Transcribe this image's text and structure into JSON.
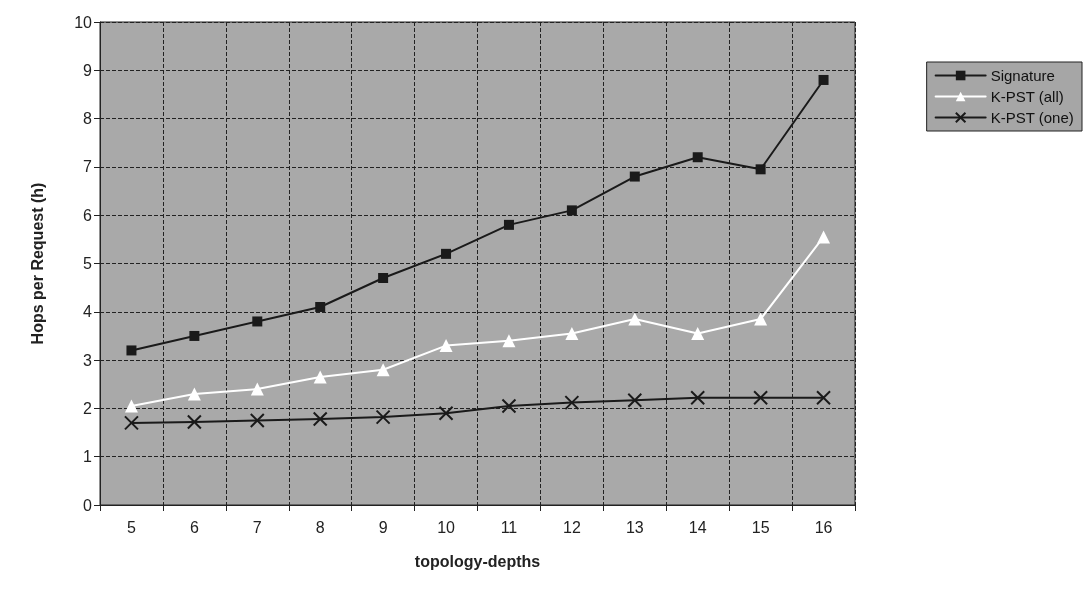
{
  "chart_data": {
    "type": "line",
    "xlabel": "topology-depths",
    "ylabel": "Hops per Request (h)",
    "categories": [
      "5",
      "6",
      "7",
      "8",
      "9",
      "10",
      "11",
      "12",
      "13",
      "14",
      "15",
      "16"
    ],
    "series": [
      {
        "name": "Signature",
        "color": "#1a1a1a",
        "marker": "square",
        "values": [
          3.2,
          3.5,
          3.8,
          4.1,
          4.7,
          5.2,
          5.8,
          6.1,
          6.8,
          7.2,
          6.95,
          8.8
        ]
      },
      {
        "name": "K-PST (all)",
        "color": "#ffffff",
        "marker": "triangle",
        "values": [
          2.05,
          2.3,
          2.4,
          2.65,
          2.8,
          3.3,
          3.4,
          3.55,
          3.85,
          3.55,
          3.85,
          5.55
        ]
      },
      {
        "name": "K-PST (one)",
        "color": "#1a1a1a",
        "marker": "cross",
        "values": [
          1.7,
          1.72,
          1.75,
          1.78,
          1.82,
          1.9,
          2.05,
          2.12,
          2.17,
          2.22,
          2.22,
          2.22
        ]
      }
    ],
    "ylim": [
      0,
      10
    ],
    "yticks": [
      0,
      1,
      2,
      3,
      4,
      5,
      6,
      7,
      8,
      9,
      10
    ],
    "grid": true,
    "legend": "top right",
    "line_style": "solid"
  }
}
